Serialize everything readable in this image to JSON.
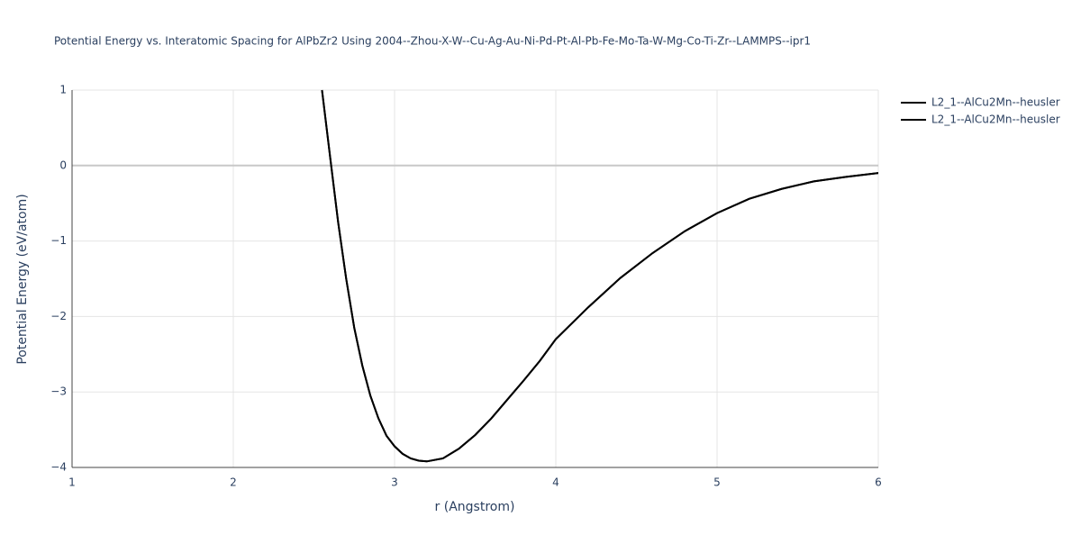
{
  "chart_data": {
    "type": "line",
    "title": "Potential Energy vs. Interatomic Spacing for AlPbZr2 Using 2004--Zhou-X-W--Cu-Ag-Au-Ni-Pd-Pt-Al-Pb-Fe-Mo-Ta-W-Mg-Co-Ti-Zr--LAMMPS--ipr1",
    "xlabel": "r (Angstrom)",
    "ylabel": "Potential Energy (eV/atom)",
    "x": [
      2.55,
      2.6,
      2.65,
      2.7,
      2.75,
      2.8,
      2.85,
      2.9,
      2.95,
      3.0,
      3.05,
      3.1,
      3.15,
      3.2,
      3.3,
      3.4,
      3.5,
      3.6,
      3.7,
      3.8,
      3.9,
      4.0,
      4.2,
      4.4,
      4.6,
      4.8,
      5.0,
      5.2,
      5.4,
      5.6,
      5.8,
      6.0
    ],
    "series": [
      {
        "name": "L2_1--AlCu2Mn--heusler",
        "color": "#000000",
        "values": [
          1.0,
          0.12,
          -0.75,
          -1.5,
          -2.15,
          -2.65,
          -3.05,
          -3.35,
          -3.58,
          -3.72,
          -3.82,
          -3.88,
          -3.91,
          -3.92,
          -3.88,
          -3.75,
          -3.57,
          -3.35,
          -3.1,
          -2.85,
          -2.59,
          -2.3,
          -1.88,
          -1.49,
          -1.16,
          -0.87,
          -0.63,
          -0.44,
          -0.31,
          -0.21,
          -0.15,
          -0.1
        ]
      },
      {
        "name": "L2_1--AlCu2Mn--heusler",
        "color": "#000000",
        "values": [
          1.0,
          0.12,
          -0.75,
          -1.5,
          -2.15,
          -2.65,
          -3.05,
          -3.35,
          -3.58,
          -3.72,
          -3.82,
          -3.88,
          -3.91,
          -3.92,
          -3.88,
          -3.75,
          -3.57,
          -3.35,
          -3.1,
          -2.85,
          -2.59,
          -2.3,
          -1.88,
          -1.49,
          -1.16,
          -0.87,
          -0.63,
          -0.44,
          -0.31,
          -0.21,
          -0.15,
          -0.1
        ]
      }
    ],
    "xlim": [
      1,
      6
    ],
    "xticks": [
      1,
      2,
      3,
      4,
      5,
      6
    ],
    "ylim": [
      -4,
      1
    ],
    "yticks": [
      {
        "value": -4,
        "label": "−4"
      },
      {
        "value": -3,
        "label": "−3"
      },
      {
        "value": -2,
        "label": "−2"
      },
      {
        "value": -1,
        "label": "−1"
      },
      0,
      1
    ],
    "grid": true,
    "legend": "right"
  }
}
